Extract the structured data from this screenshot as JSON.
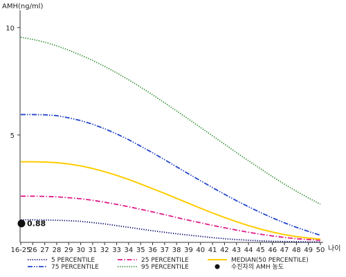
{
  "chart_data": {
    "type": "line",
    "ylabel": "AMH(ng/ml)",
    "xlabel": "나이",
    "ylim": [
      0,
      10.8
    ],
    "yticks": [
      10,
      5
    ],
    "x_tick_labels": [
      "16-25",
      "26",
      "27",
      "28",
      "29",
      "30",
      "31",
      "32",
      "33",
      "34",
      "35",
      "36",
      "37",
      "38",
      "39",
      "40",
      "41",
      "42",
      "43",
      "44",
      "45",
      "46",
      "47",
      "48",
      "49",
      "50"
    ],
    "series": [
      {
        "name": "5 PERCENTILE",
        "color": "#0a0a6e",
        "dash": "dotted",
        "values": [
          1.05,
          1.05,
          1.04,
          1.03,
          1.01,
          0.98,
          0.92,
          0.86,
          0.78,
          0.7,
          0.62,
          0.54,
          0.47,
          0.4,
          0.34,
          0.28,
          0.22,
          0.17,
          0.13,
          0.1,
          0.07,
          0.05,
          0.04,
          0.03,
          0.02,
          0.02
        ]
      },
      {
        "name": "25 PERCENTILE",
        "color": "#e0198a",
        "dash": "dashdot",
        "values": [
          2.15,
          2.15,
          2.14,
          2.12,
          2.08,
          2.03,
          1.96,
          1.87,
          1.77,
          1.66,
          1.54,
          1.42,
          1.29,
          1.16,
          1.03,
          0.91,
          0.79,
          0.68,
          0.57,
          0.47,
          0.38,
          0.3,
          0.23,
          0.17,
          0.13,
          0.1
        ]
      },
      {
        "name": "MEDIAN(50 PERCENTILE)",
        "color": "#ffcc00",
        "dash": "solid",
        "values": [
          3.75,
          3.75,
          3.74,
          3.71,
          3.65,
          3.56,
          3.44,
          3.29,
          3.12,
          2.93,
          2.72,
          2.5,
          2.28,
          2.05,
          1.82,
          1.59,
          1.37,
          1.16,
          0.96,
          0.78,
          0.62,
          0.48,
          0.36,
          0.27,
          0.2,
          0.15
        ]
      },
      {
        "name": "75 PERCENTILE",
        "color": "#2244cc",
        "dash": "dashdotdot",
        "values": [
          5.95,
          5.95,
          5.94,
          5.9,
          5.8,
          5.67,
          5.5,
          5.29,
          5.05,
          4.78,
          4.48,
          4.17,
          3.85,
          3.52,
          3.19,
          2.87,
          2.55,
          2.24,
          1.94,
          1.66,
          1.39,
          1.14,
          0.91,
          0.7,
          0.51,
          0.33
        ]
      },
      {
        "name": "95 PERCENTILE",
        "color": "#2e8b2e",
        "dash": "dotted",
        "values": [
          9.55,
          9.45,
          9.32,
          9.15,
          8.95,
          8.72,
          8.47,
          8.19,
          7.89,
          7.57,
          7.23,
          6.87,
          6.5,
          6.12,
          5.74,
          5.35,
          4.96,
          4.57,
          4.18,
          3.8,
          3.43,
          3.06,
          2.71,
          2.38,
          2.07,
          1.78
        ]
      }
    ],
    "marker": {
      "name": "수진자의 AMH 농도",
      "x_index": 0,
      "value": 0.88,
      "label": "0.88"
    },
    "legend": [
      {
        "series": "5 PERCENTILE"
      },
      {
        "series": "25 PERCENTILE"
      },
      {
        "series": "MEDIAN(50 PERCENTILE)"
      },
      {
        "series": "75 PERCENTILE"
      },
      {
        "series": "95 PERCENTILE"
      },
      {
        "marker": "수진자의 AMH 농도"
      }
    ],
    "legend_position": "bottom",
    "grid": false
  }
}
